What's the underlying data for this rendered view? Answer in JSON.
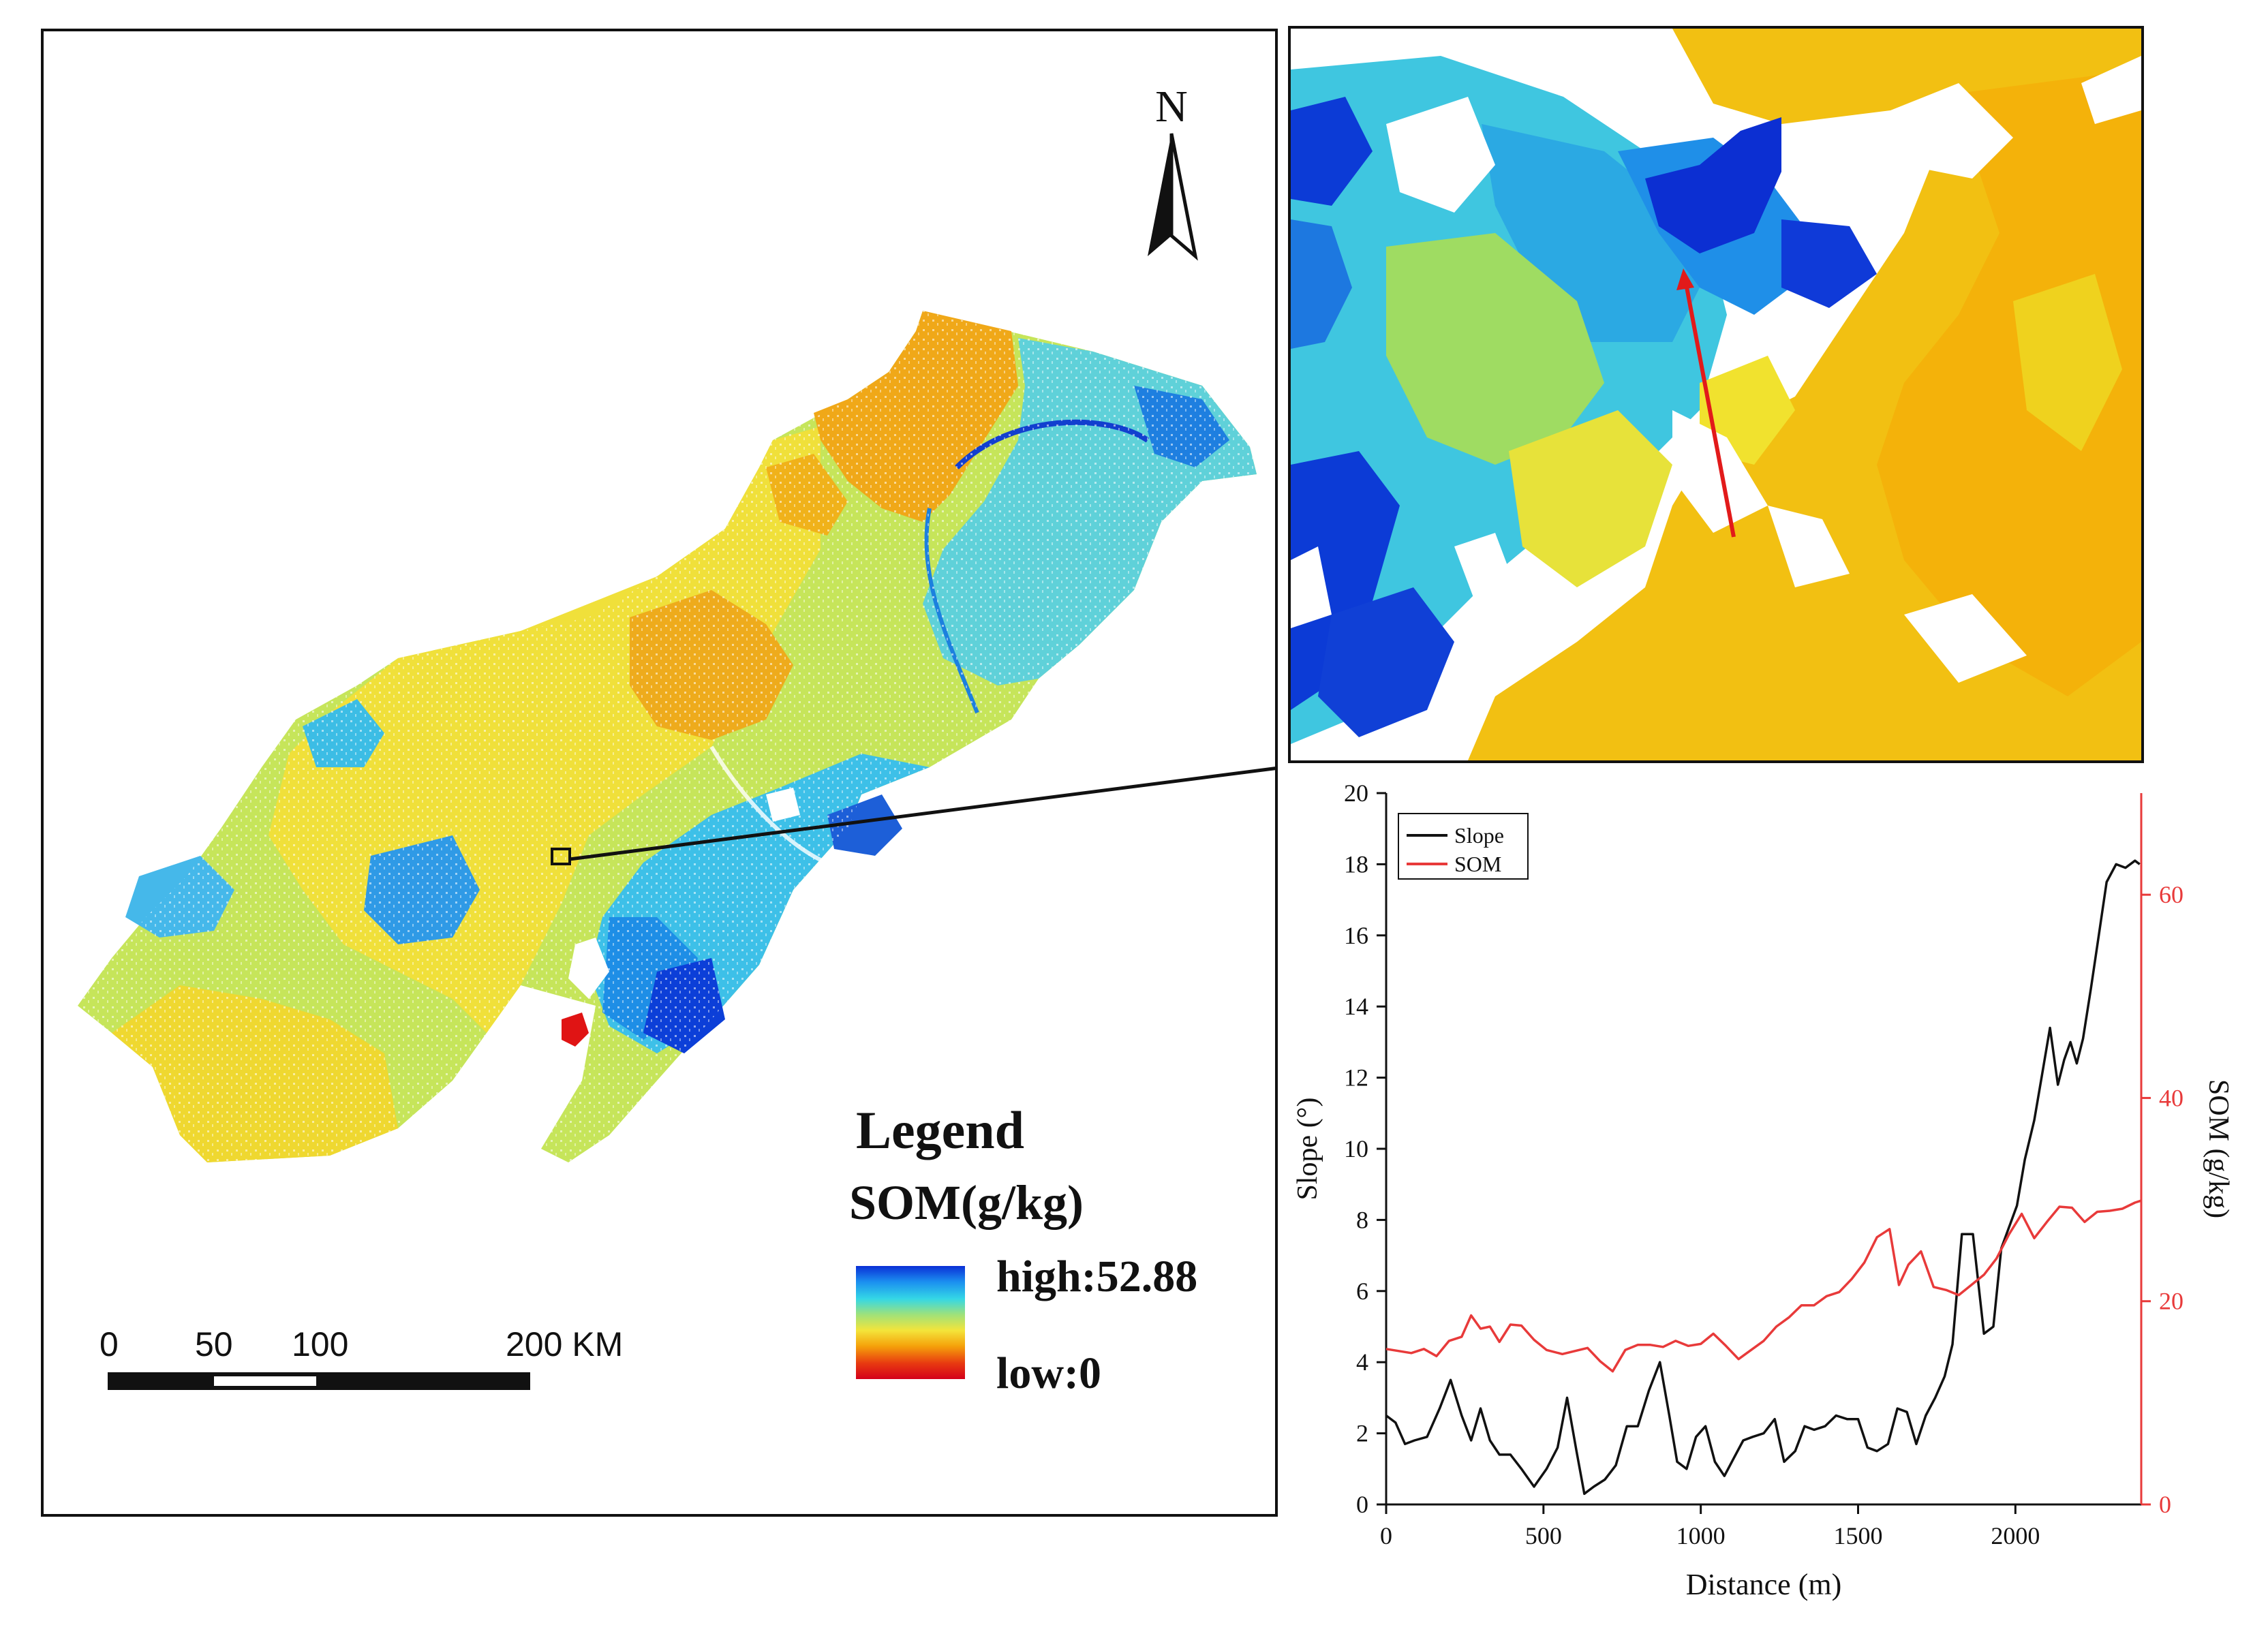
{
  "main_map": {
    "north_label": "N",
    "legend": {
      "title": "Legend",
      "subtitle": "SOM(g/kg)",
      "high_label": "high:52.88",
      "low_label": "low:0",
      "ramp_colors": [
        "#0a2fd6",
        "#1b8ff0",
        "#34d7e6",
        "#9fe27a",
        "#f4e43a",
        "#f5a10a",
        "#e83a10",
        "#d4001a"
      ]
    },
    "scale_bar": {
      "labels": [
        "0",
        "50",
        "100",
        "200 KM"
      ]
    },
    "palette": {
      "dark_blue": "#0b3bd9",
      "blue": "#1e8fe8",
      "cyan": "#35c8e6",
      "green_yellow": "#b8e04a",
      "yellow": "#f2e234",
      "orange": "#f2b10c",
      "red": "#e01414"
    }
  },
  "zoom_map": {
    "transect_color": "#e21a1a"
  },
  "chart_data": {
    "type": "line",
    "xlabel": "Distance (m)",
    "ylabel": "Slope (°)",
    "ylabel_right": "SOM (g/kg)",
    "xlim": [
      0,
      2400
    ],
    "ylim": [
      0,
      20
    ],
    "ylim_right": [
      0,
      70
    ],
    "x_ticks": [
      "0",
      "500",
      "1000",
      "1500",
      "2000"
    ],
    "y_ticks": [
      "0",
      "2",
      "4",
      "6",
      "8",
      "10",
      "12",
      "14",
      "16",
      "18",
      "20"
    ],
    "y_ticks_right": [
      "0",
      "20",
      "40",
      "60"
    ],
    "legend": [
      "Slope",
      "SOM"
    ],
    "series": [
      {
        "name": "Slope",
        "color": "#111111",
        "axis": "left",
        "x": [
          0,
          30,
          60,
          90,
          130,
          170,
          205,
          240,
          270,
          300,
          330,
          360,
          395,
          430,
          470,
          510,
          545,
          575,
          605,
          630,
          660,
          695,
          730,
          765,
          800,
          835,
          870,
          900,
          925,
          955,
          985,
          1015,
          1045,
          1075,
          1105,
          1135,
          1165,
          1200,
          1235,
          1265,
          1300,
          1330,
          1360,
          1395,
          1430,
          1465,
          1500,
          1530,
          1560,
          1595,
          1625,
          1655,
          1685,
          1715,
          1745,
          1775,
          1800,
          1830,
          1865,
          1900,
          1930,
          1955,
          1980,
          2005,
          2030,
          2060,
          2085,
          2110,
          2135,
          2155,
          2175,
          2195,
          2215,
          2240,
          2265,
          2290,
          2320,
          2350,
          2380,
          2395
        ],
        "values": [
          2.5,
          2.3,
          1.7,
          1.8,
          1.9,
          2.7,
          3.5,
          2.5,
          1.8,
          2.7,
          1.8,
          1.4,
          1.4,
          1.0,
          0.5,
          1.0,
          1.6,
          3.0,
          1.5,
          0.3,
          0.5,
          0.7,
          1.1,
          2.2,
          2.2,
          3.2,
          4.0,
          2.5,
          1.2,
          1.0,
          1.9,
          2.2,
          1.2,
          0.8,
          1.3,
          1.8,
          1.9,
          2.0,
          2.4,
          1.2,
          1.5,
          2.2,
          2.1,
          2.2,
          2.5,
          2.4,
          2.4,
          1.6,
          1.5,
          1.7,
          2.7,
          2.6,
          1.7,
          2.5,
          3.0,
          3.6,
          4.5,
          7.6,
          7.6,
          4.8,
          5.0,
          7.2,
          7.8,
          8.4,
          9.7,
          10.8,
          12.1,
          13.4,
          11.8,
          12.5,
          13.0,
          12.4,
          13.1,
          14.5,
          16.0,
          17.5,
          18.0,
          17.9,
          18.1,
          18.0
        ]
      },
      {
        "name": "SOM",
        "color": "#e83a3a",
        "axis": "right",
        "x": [
          0,
          40,
          80,
          120,
          160,
          200,
          240,
          270,
          300,
          330,
          360,
          395,
          430,
          470,
          510,
          560,
          600,
          640,
          680,
          720,
          760,
          800,
          840,
          880,
          920,
          960,
          1000,
          1040,
          1080,
          1120,
          1160,
          1200,
          1240,
          1280,
          1320,
          1360,
          1400,
          1440,
          1480,
          1520,
          1560,
          1600,
          1630,
          1660,
          1700,
          1740,
          1780,
          1820,
          1860,
          1900,
          1940,
          1980,
          2020,
          2060,
          2100,
          2140,
          2180,
          2220,
          2260,
          2300,
          2340,
          2380,
          2400
        ],
        "values": [
          15.3,
          15.1,
          14.9,
          15.3,
          14.6,
          16.1,
          16.5,
          18.6,
          17.3,
          17.5,
          16.0,
          17.7,
          17.6,
          16.2,
          15.2,
          14.8,
          15.1,
          15.4,
          14.1,
          13.1,
          15.2,
          15.7,
          15.7,
          15.5,
          16.1,
          15.6,
          15.8,
          16.8,
          15.6,
          14.3,
          15.2,
          16.1,
          17.5,
          18.4,
          19.6,
          19.6,
          20.5,
          20.9,
          22.2,
          23.8,
          26.3,
          27.1,
          21.6,
          23.6,
          24.9,
          21.4,
          21.1,
          20.6,
          21.6,
          22.6,
          24.2,
          26.6,
          28.6,
          26.2,
          27.8,
          29.3,
          29.2,
          27.8,
          28.8,
          28.9,
          29.1,
          29.7,
          29.9
        ]
      }
    ]
  }
}
